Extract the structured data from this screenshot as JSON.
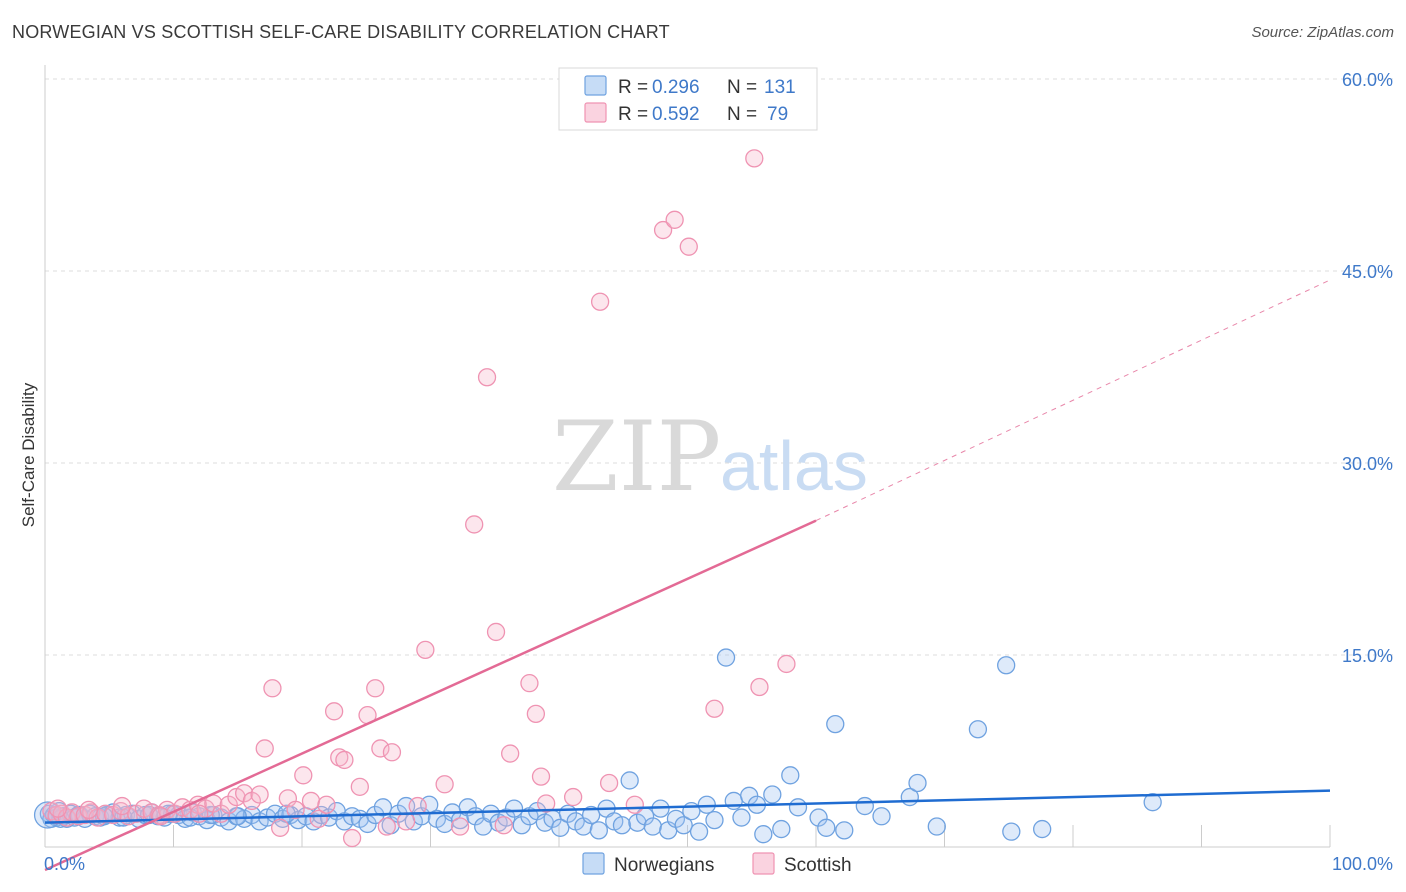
{
  "title": "NORWEGIAN VS SCOTTISH SELF-CARE DISABILITY CORRELATION CHART",
  "source": "Source: ZipAtlas.com",
  "watermark": {
    "zip": "ZIP",
    "atlas": "atlas"
  },
  "colors": {
    "norwegians": "#6fa2e0",
    "norwegians_fill": "rgba(160,196,240,0.35)",
    "norwegians_line": "#1f6cd1",
    "scottish": "#ef93b2",
    "scottish_fill": "rgba(246,182,204,0.35)",
    "scottish_line": "#e36a95",
    "tick": "#3f79c9",
    "grid": "#dddddd"
  },
  "legend": {
    "rows": [
      {
        "r_label": "R = ",
        "r_value": "0.296",
        "n_label": "N = ",
        "n_value": "131",
        "series": "norwegians"
      },
      {
        "r_label": "R = ",
        "r_value": "0.592",
        "n_label": "N = ",
        "n_value": "79",
        "series": "scottish"
      }
    ]
  },
  "chart_data": {
    "type": "scatter",
    "title": "NORWEGIAN VS SCOTTISH SELF-CARE DISABILITY CORRELATION CHART",
    "xlabel": "",
    "ylabel": "Self-Care Disability",
    "xlim": [
      0,
      100
    ],
    "ylim": [
      0,
      63
    ],
    "x_tick_labels": [
      "0.0%",
      "100.0%"
    ],
    "y_ticks": [
      15,
      30,
      45,
      60
    ],
    "y_tick_labels": [
      "15.0%",
      "30.0%",
      "45.0%",
      "60.0%"
    ],
    "grid": true,
    "legend_position": "top-center",
    "series": [
      {
        "name": "Norwegians",
        "R": 0.296,
        "N": 131,
        "trend": {
          "x0": 0,
          "y0": 1.9,
          "x1": 100,
          "y1": 4.4
        },
        "points": [
          [
            0.3,
            2.6
          ],
          [
            0.5,
            2.2
          ],
          [
            0.7,
            2.5
          ],
          [
            0.9,
            2.3
          ],
          [
            1.1,
            2.8
          ],
          [
            1.4,
            2.4
          ],
          [
            1.7,
            2.2
          ],
          [
            2.0,
            2.6
          ],
          [
            2.3,
            2.3
          ],
          [
            2.7,
            2.5
          ],
          [
            3.1,
            2.2
          ],
          [
            3.5,
            2.6
          ],
          [
            3.9,
            2.4
          ],
          [
            4.3,
            2.3
          ],
          [
            4.8,
            2.5
          ],
          [
            5.3,
            2.7
          ],
          [
            5.8,
            2.3
          ],
          [
            6.3,
            2.5
          ],
          [
            6.8,
            2.6
          ],
          [
            7.3,
            2.2
          ],
          [
            7.8,
            2.5
          ],
          [
            8.3,
            2.7
          ],
          [
            8.8,
            2.4
          ],
          [
            9.3,
            2.3
          ],
          [
            9.9,
            2.6
          ],
          [
            10.4,
            2.5
          ],
          [
            10.9,
            2.2
          ],
          [
            11.5,
            2.7
          ],
          [
            12.0,
            2.4
          ],
          [
            12.6,
            2.1
          ],
          [
            13.1,
            2.5
          ],
          [
            13.7,
            2.3
          ],
          [
            14.3,
            2.0
          ],
          [
            14.9,
            2.4
          ],
          [
            15.5,
            2.2
          ],
          [
            16.1,
            2.5
          ],
          [
            16.7,
            2.0
          ],
          [
            17.3,
            2.3
          ],
          [
            17.9,
            2.6
          ],
          [
            18.5,
            2.2
          ],
          [
            19.1,
            2.5
          ],
          [
            19.7,
            2.1
          ],
          [
            20.3,
            2.4
          ],
          [
            20.9,
            2.0
          ],
          [
            21.5,
            2.5
          ],
          [
            22.1,
            2.3
          ],
          [
            22.7,
            2.8
          ],
          [
            23.3,
            2.0
          ],
          [
            23.9,
            2.4
          ],
          [
            24.5,
            2.2
          ],
          [
            25.1,
            1.8
          ],
          [
            25.7,
            2.5
          ],
          [
            26.3,
            3.1
          ],
          [
            26.9,
            1.7
          ],
          [
            27.5,
            2.6
          ],
          [
            28.1,
            3.2
          ],
          [
            28.7,
            2.0
          ],
          [
            29.3,
            2.4
          ],
          [
            29.9,
            3.3
          ],
          [
            30.5,
            2.2
          ],
          [
            31.1,
            1.8
          ],
          [
            31.7,
            2.7
          ],
          [
            32.3,
            2.1
          ],
          [
            32.9,
            3.1
          ],
          [
            33.5,
            2.4
          ],
          [
            34.1,
            1.6
          ],
          [
            34.7,
            2.6
          ],
          [
            35.3,
            1.9
          ],
          [
            35.9,
            2.3
          ],
          [
            36.5,
            3.0
          ],
          [
            37.1,
            1.7
          ],
          [
            37.7,
            2.4
          ],
          [
            38.3,
            2.8
          ],
          [
            38.9,
            1.9
          ],
          [
            39.5,
            2.2
          ],
          [
            40.1,
            1.5
          ],
          [
            40.7,
            2.6
          ],
          [
            41.3,
            2.0
          ],
          [
            41.9,
            1.6
          ],
          [
            42.5,
            2.5
          ],
          [
            43.1,
            1.3
          ],
          [
            43.7,
            3.0
          ],
          [
            44.3,
            2.0
          ],
          [
            44.9,
            1.7
          ],
          [
            45.5,
            5.2
          ],
          [
            46.1,
            1.9
          ],
          [
            46.7,
            2.4
          ],
          [
            47.3,
            1.6
          ],
          [
            47.9,
            3.0
          ],
          [
            48.5,
            1.3
          ],
          [
            49.1,
            2.2
          ],
          [
            49.7,
            1.7
          ],
          [
            50.3,
            2.8
          ],
          [
            50.9,
            1.2
          ],
          [
            51.5,
            3.3
          ],
          [
            52.1,
            2.1
          ],
          [
            53.0,
            14.8
          ],
          [
            53.6,
            3.6
          ],
          [
            54.2,
            2.3
          ],
          [
            54.8,
            4.0
          ],
          [
            55.4,
            3.3
          ],
          [
            55.9,
            1.0
          ],
          [
            56.6,
            4.1
          ],
          [
            57.3,
            1.4
          ],
          [
            58.0,
            5.6
          ],
          [
            58.6,
            3.1
          ],
          [
            60.2,
            2.3
          ],
          [
            60.8,
            1.5
          ],
          [
            61.5,
            9.6
          ],
          [
            62.2,
            1.3
          ],
          [
            63.8,
            3.2
          ],
          [
            65.1,
            2.4
          ],
          [
            67.3,
            3.9
          ],
          [
            67.9,
            5.0
          ],
          [
            69.4,
            1.6
          ],
          [
            72.6,
            9.2
          ],
          [
            74.8,
            14.2
          ],
          [
            75.2,
            1.2
          ],
          [
            77.6,
            1.4
          ],
          [
            86.2,
            3.5
          ],
          [
            1.2,
            2.2
          ],
          [
            2.6,
            2.5
          ],
          [
            4.6,
            2.4
          ],
          [
            6.1,
            2.3
          ],
          [
            8.1,
            2.5
          ],
          [
            9.6,
            2.6
          ],
          [
            11.3,
            2.3
          ],
          [
            12.9,
            2.5
          ],
          [
            15.0,
            2.4
          ],
          [
            18.8,
            2.6
          ],
          [
            0.2,
            2.5
          ]
        ]
      },
      {
        "name": "Scottish",
        "R": 0.592,
        "N": 79,
        "trend": {
          "x0": 0,
          "y0": -1.8,
          "x1": 60,
          "y1": 25.5
        },
        "trend_dashed": {
          "x0": 60,
          "y0": 25.5,
          "x1": 100,
          "y1": 44.3
        },
        "points": [
          [
            0.5,
            2.8
          ],
          [
            0.9,
            2.5
          ],
          [
            1.3,
            2.6
          ],
          [
            1.7,
            2.3
          ],
          [
            2.1,
            2.7
          ],
          [
            2.6,
            2.4
          ],
          [
            3.1,
            2.5
          ],
          [
            3.6,
            2.7
          ],
          [
            4.1,
            2.3
          ],
          [
            4.7,
            2.6
          ],
          [
            5.3,
            2.5
          ],
          [
            5.9,
            2.8
          ],
          [
            6.5,
            2.4
          ],
          [
            7.1,
            2.6
          ],
          [
            7.7,
            3.0
          ],
          [
            8.3,
            2.7
          ],
          [
            8.9,
            2.5
          ],
          [
            9.5,
            2.9
          ],
          [
            10.1,
            2.6
          ],
          [
            10.7,
            3.1
          ],
          [
            11.3,
            2.9
          ],
          [
            11.9,
            3.3
          ],
          [
            12.5,
            3.0
          ],
          [
            13.1,
            3.4
          ],
          [
            13.7,
            2.6
          ],
          [
            14.3,
            3.3
          ],
          [
            14.9,
            3.9
          ],
          [
            15.5,
            4.2
          ],
          [
            16.1,
            3.6
          ],
          [
            16.7,
            4.1
          ],
          [
            17.1,
            7.7
          ],
          [
            17.7,
            12.4
          ],
          [
            18.3,
            1.5
          ],
          [
            18.9,
            3.8
          ],
          [
            19.5,
            2.9
          ],
          [
            20.1,
            5.6
          ],
          [
            20.7,
            3.6
          ],
          [
            21.3,
            2.2
          ],
          [
            21.9,
            3.3
          ],
          [
            22.5,
            10.6
          ],
          [
            22.9,
            7.0
          ],
          [
            23.3,
            6.8
          ],
          [
            23.9,
            0.7
          ],
          [
            24.5,
            4.7
          ],
          [
            25.1,
            10.3
          ],
          [
            25.7,
            12.4
          ],
          [
            26.1,
            7.7
          ],
          [
            26.6,
            1.6
          ],
          [
            27.0,
            7.4
          ],
          [
            28.1,
            2.0
          ],
          [
            29.0,
            3.2
          ],
          [
            29.6,
            15.4
          ],
          [
            31.1,
            4.9
          ],
          [
            32.3,
            1.6
          ],
          [
            33.4,
            25.2
          ],
          [
            34.4,
            36.7
          ],
          [
            35.1,
            16.8
          ],
          [
            35.7,
            1.7
          ],
          [
            36.2,
            7.3
          ],
          [
            37.7,
            12.8
          ],
          [
            38.2,
            10.4
          ],
          [
            38.6,
            5.5
          ],
          [
            39.0,
            3.4
          ],
          [
            41.1,
            3.9
          ],
          [
            43.2,
            42.6
          ],
          [
            43.9,
            5.0
          ],
          [
            45.9,
            3.3
          ],
          [
            48.1,
            48.2
          ],
          [
            49.0,
            49.0
          ],
          [
            50.1,
            46.9
          ],
          [
            52.1,
            10.8
          ],
          [
            55.2,
            53.8
          ],
          [
            55.6,
            12.5
          ],
          [
            57.7,
            14.3
          ],
          [
            6.0,
            3.2
          ],
          [
            9.0,
            2.4
          ],
          [
            12.0,
            2.6
          ],
          [
            3.4,
            2.9
          ],
          [
            1.0,
            3.0
          ]
        ]
      }
    ]
  },
  "bottom_legend": {
    "items": [
      {
        "label": "Norwegians",
        "series": "norwegians"
      },
      {
        "label": "Scottish",
        "series": "scottish"
      }
    ]
  }
}
